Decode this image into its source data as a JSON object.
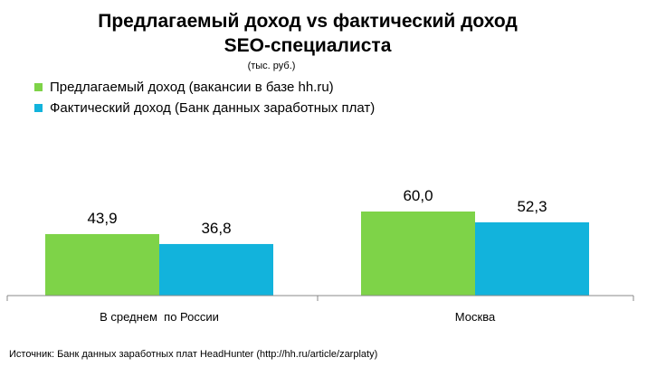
{
  "chart_data": {
    "type": "bar",
    "title_line1": "Предлагаемый доход vs фактический доход",
    "title_line2": "SEO-специалиста",
    "unit": "(тыс. руб.)",
    "categories": [
      "В среднем  по России",
      "Москва"
    ],
    "series": [
      {
        "name": "Предлагаемый доход  (вакансии в базе hh.ru)",
        "values": [
          43.9,
          60.0
        ],
        "labels": [
          "43,9",
          "60,0"
        ],
        "color": "#7ed348"
      },
      {
        "name": "Фактический доход  (Банк данных заработных плат)",
        "values": [
          36.8,
          52.3
        ],
        "labels": [
          "36,8",
          "52,3"
        ],
        "color": "#12b3dc"
      }
    ],
    "ylim": [
      0,
      65
    ],
    "grid": false,
    "legend_position": "top-left"
  },
  "source": "Источник: Банк данных заработных плат HeadHunter (http://hh.ru/article/zarplaty)"
}
